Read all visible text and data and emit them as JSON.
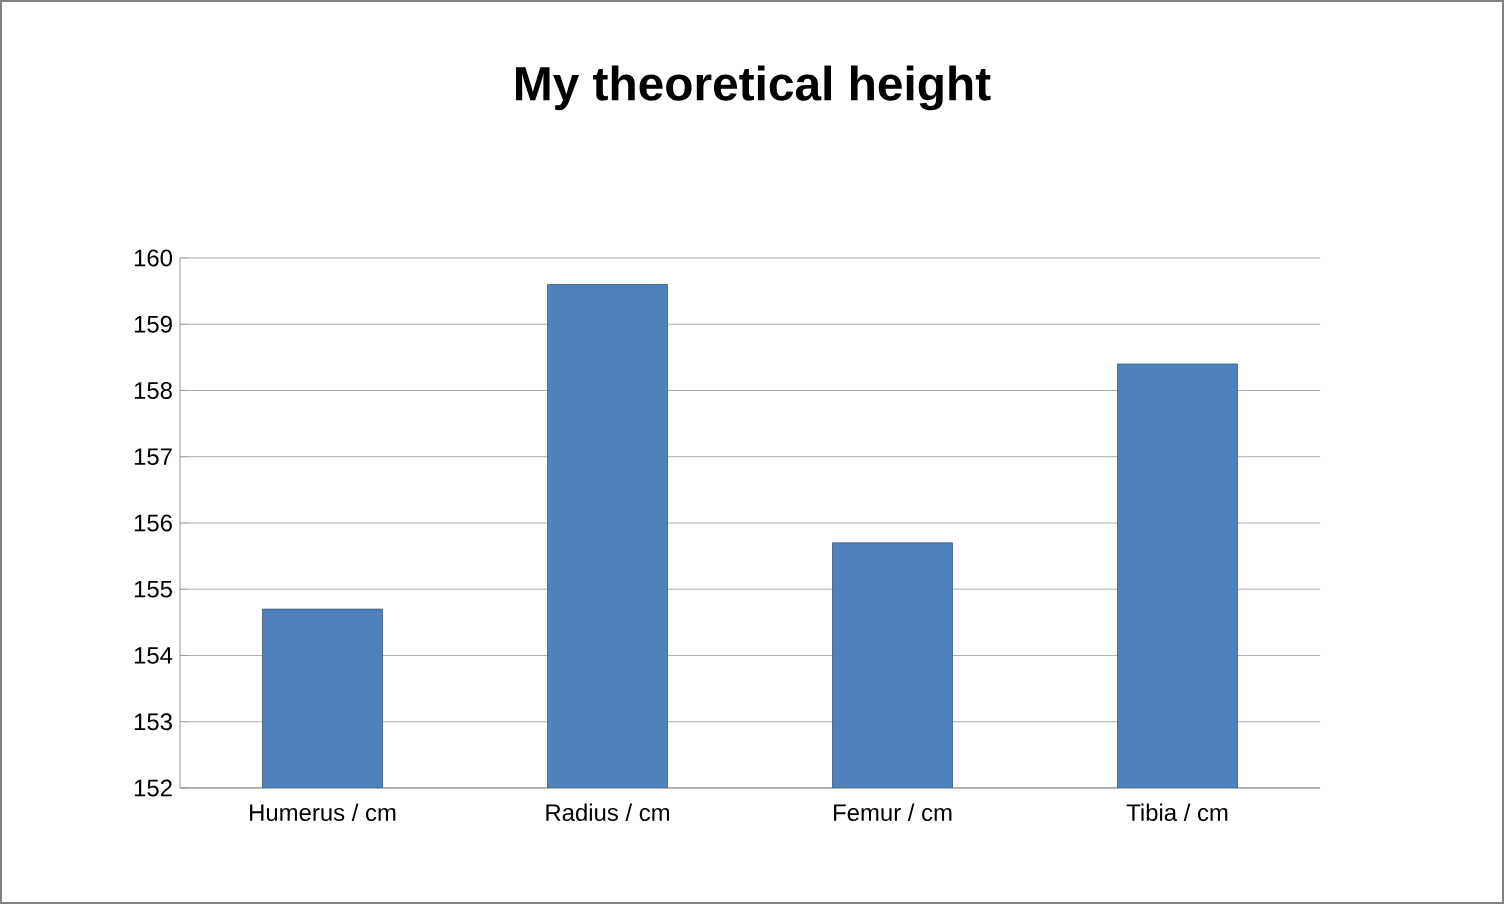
{
  "chart_data": {
    "type": "bar",
    "title": "My theoretical height",
    "categories": [
      "Humerus / cm",
      "Radius / cm",
      "Femur / cm",
      "Tibia / cm"
    ],
    "values": [
      154.7,
      159.6,
      155.7,
      158.4
    ],
    "color": "#4f81bd",
    "ylim": [
      152,
      160
    ],
    "yticks": [
      152,
      153,
      154,
      155,
      156,
      157,
      158,
      159,
      160
    ],
    "grid": "y"
  }
}
